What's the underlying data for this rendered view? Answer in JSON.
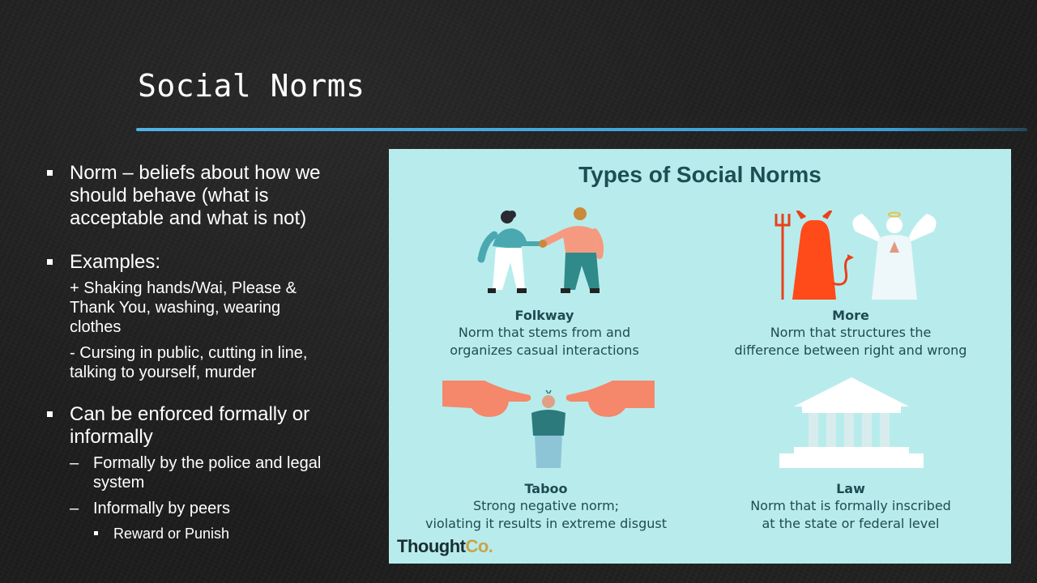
{
  "slide": {
    "title": "Social Norms"
  },
  "bullets": {
    "norm": {
      "line1": "Norm – beliefs about how we",
      "line2": "should behave (what is",
      "line3": "acceptable and what is not)"
    },
    "examples": {
      "label": "Examples:",
      "positive": [
        "+ Shaking hands/Wai, Please &",
        "Thank You, washing, wearing",
        "clothes"
      ],
      "negative": [
        "- Cursing in public, cutting in line,",
        "talking to yourself, murder"
      ]
    },
    "enforced": {
      "line1": "Can be enforced formally or",
      "line2": "informally",
      "formal": [
        "Formally by the police and legal",
        "system"
      ],
      "informal": "Informally by peers",
      "reward": "Reward or Punish",
      "dash": "–"
    }
  },
  "panel": {
    "title": "Types of Social Norms",
    "folkway": {
      "name": "Folkway",
      "desc1": "Norm that stems from and",
      "desc2": "organizes casual interactions"
    },
    "more": {
      "name": "More",
      "desc1": "Norm that structures the",
      "desc2": "difference between right and wrong"
    },
    "taboo": {
      "name": "Taboo",
      "desc1": "Strong negative norm;",
      "desc2": "violating it results in extreme disgust"
    },
    "law": {
      "name": "Law",
      "desc1": "Norm that is formally inscribed",
      "desc2": "at the state or federal level"
    },
    "brand": {
      "main": "Thought",
      "suffix": "Co."
    }
  }
}
